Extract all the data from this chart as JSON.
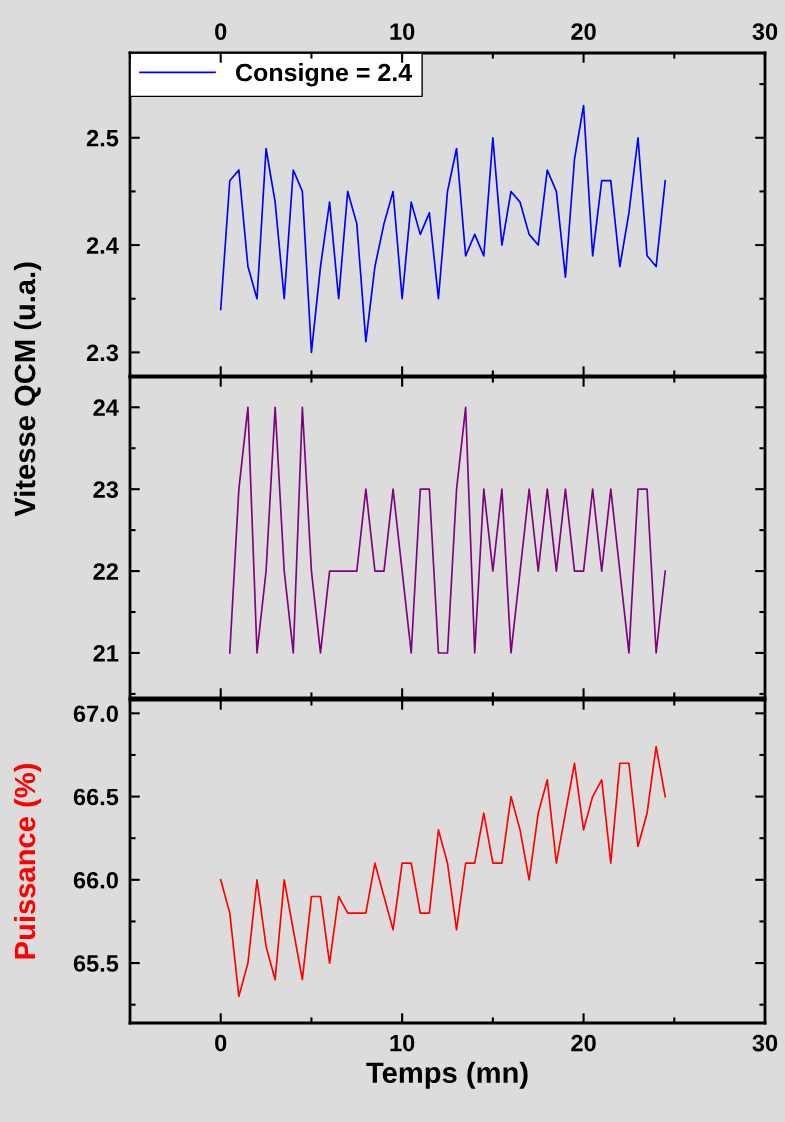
{
  "chart_data": [
    {
      "type": "line",
      "ylabel": "Vitesse QCM (u.a.)",
      "xlim": [
        -5,
        30
      ],
      "xticks": [
        0,
        10,
        20,
        30
      ],
      "x2lim": [
        -5,
        30
      ],
      "x2ticks": [
        0,
        10,
        20,
        30
      ],
      "ylim": [
        2.278,
        2.579
      ],
      "yticks": [
        2.3,
        2.4,
        2.5
      ],
      "tick_labels": "y",
      "legend": "top left",
      "grid": false,
      "series": [
        {
          "name": "Consigne = 2.4",
          "color": "#0000ff",
          "x": [
            0,
            0.5,
            1,
            1.5,
            2,
            2.5,
            3,
            3.5,
            4,
            4.5,
            5,
            5.5,
            6,
            6.5,
            7,
            7.5,
            8,
            8.5,
            9,
            9.5,
            10,
            10.5,
            11,
            11.5,
            12,
            12.5,
            13,
            13.5,
            14,
            14.5,
            15,
            15.5,
            16,
            16.5,
            17,
            17.5,
            18,
            18.5,
            19,
            19.5,
            20,
            20.5,
            21,
            21.5,
            22,
            22.5,
            23,
            23.5,
            24,
            24.5
          ],
          "values": [
            2.34,
            2.46,
            2.47,
            2.38,
            2.35,
            2.49,
            2.44,
            2.35,
            2.47,
            2.45,
            2.3,
            2.38,
            2.44,
            2.35,
            2.45,
            2.42,
            2.31,
            2.38,
            2.42,
            2.45,
            2.35,
            2.44,
            2.41,
            2.43,
            2.35,
            2.45,
            2.49,
            2.39,
            2.41,
            2.39,
            2.5,
            2.4,
            2.45,
            2.44,
            2.41,
            2.4,
            2.47,
            2.45,
            2.37,
            2.48,
            2.53,
            2.39,
            2.46,
            2.46,
            2.38,
            2.43,
            2.5,
            2.39,
            2.38,
            2.46
          ]
        }
      ]
    },
    {
      "type": "line",
      "xlim": [
        -5,
        30
      ],
      "xticks": [
        0,
        10,
        20,
        30
      ],
      "ylim": [
        20.45,
        24.37
      ],
      "yticks": [
        21,
        22,
        23,
        24
      ],
      "tick_labels": "y",
      "grid": false,
      "series": [
        {
          "color": "#800080",
          "x": [
            0.5,
            1,
            1.5,
            2,
            2.5,
            3,
            3.5,
            4,
            4.5,
            5,
            5.5,
            6,
            6.5,
            7,
            7.5,
            8,
            8.5,
            9,
            9.5,
            10,
            10.5,
            11,
            11.5,
            12,
            12.5,
            13,
            13.5,
            14,
            14.5,
            15,
            15.5,
            16,
            16.5,
            17,
            17.5,
            18,
            18.5,
            19,
            19.5,
            20,
            20.5,
            21,
            21.5,
            22,
            22.5,
            23,
            23.5,
            24,
            24.5
          ],
          "values": [
            21,
            23,
            24,
            21,
            22,
            24,
            22,
            21,
            24,
            22,
            21,
            22,
            22,
            22,
            22,
            23,
            22,
            22,
            23,
            22,
            21,
            23,
            23,
            21,
            21,
            23,
            24,
            21,
            23,
            22,
            23,
            21,
            22,
            23,
            22,
            23,
            22,
            23,
            22,
            22,
            23,
            22,
            23,
            22,
            21,
            23,
            23,
            21,
            22
          ]
        }
      ]
    },
    {
      "type": "line",
      "xlabel": "Temps (mn)",
      "ylabel": "Puissance (%)",
      "xlim": [
        -5,
        30
      ],
      "xticks": [
        0,
        10,
        20,
        30
      ],
      "ylim": [
        65.14,
        67.08
      ],
      "yticks": [
        {
          "value": 65.5,
          "label": "65.5"
        },
        {
          "value": 66,
          "label": "66.0"
        },
        {
          "value": 66.5,
          "label": "66.5"
        },
        {
          "value": 67,
          "label": "67.0"
        }
      ],
      "grid": false,
      "series": [
        {
          "color": "#ff0000",
          "x": [
            0,
            0.5,
            1,
            1.5,
            2,
            2.5,
            3,
            3.5,
            4,
            4.5,
            5,
            5.5,
            6,
            6.5,
            7,
            7.5,
            8,
            8.5,
            9,
            9.5,
            10,
            10.5,
            11,
            11.5,
            12,
            12.5,
            13,
            13.5,
            14,
            14.5,
            15,
            15.5,
            16,
            16.5,
            17,
            17.5,
            18,
            18.5,
            19,
            19.5,
            20,
            20.5,
            21,
            21.5,
            22,
            22.5,
            23,
            23.5,
            24,
            24.5
          ],
          "values": [
            66.0,
            65.8,
            65.3,
            65.5,
            66.0,
            65.6,
            65.4,
            66.0,
            65.7,
            65.4,
            65.9,
            65.9,
            65.5,
            65.9,
            65.8,
            65.8,
            65.8,
            66.1,
            65.9,
            65.7,
            66.1,
            66.1,
            65.8,
            65.8,
            66.3,
            66.1,
            65.7,
            66.1,
            66.1,
            66.4,
            66.1,
            66.1,
            66.5,
            66.3,
            66.0,
            66.4,
            66.6,
            66.1,
            66.4,
            66.7,
            66.3,
            66.5,
            66.6,
            66.1,
            66.7,
            66.7,
            66.2,
            66.4,
            66.8,
            66.5
          ]
        }
      ]
    }
  ]
}
